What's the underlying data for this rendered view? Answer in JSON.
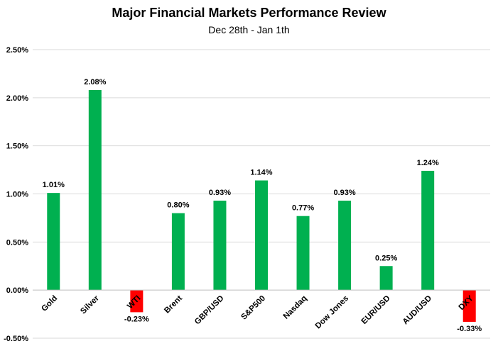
{
  "chart_data": {
    "type": "bar",
    "title": "Major Financial Markets Performance Review",
    "subtitle": "Dec 28th - Jan 1th",
    "categories": [
      "Gold",
      "Silver",
      "WTI",
      "Brent",
      "GBP/USD",
      "S&P500",
      "Nasdaq",
      "Dow Jones",
      "EUR/USD",
      "AUD/USD",
      "DXY"
    ],
    "values": [
      1.01,
      2.08,
      -0.23,
      0.8,
      0.93,
      1.14,
      0.77,
      0.93,
      0.25,
      1.24,
      -0.33
    ],
    "data_labels": [
      "1.01%",
      "2.08%",
      "-0.23%",
      "0.80%",
      "0.93%",
      "1.14%",
      "0.77%",
      "0.93%",
      "0.25%",
      "1.24%",
      "-0.33%"
    ],
    "y_ticks": [
      2.5,
      2.0,
      1.5,
      1.0,
      0.5,
      0.0,
      -0.5
    ],
    "y_tick_labels": [
      "2.50%",
      "2.00%",
      "1.50%",
      "1.00%",
      "0.50%",
      "0.00%",
      "-0.50%"
    ],
    "ylim": [
      -0.5,
      2.5
    ],
    "grid": true,
    "legend": "none",
    "xlabel": "",
    "ylabel": "",
    "colors": {
      "positive": "#00B050",
      "negative": "#FF0000",
      "grid": "#D9D9D9",
      "axis": "#BFBFBF"
    }
  }
}
